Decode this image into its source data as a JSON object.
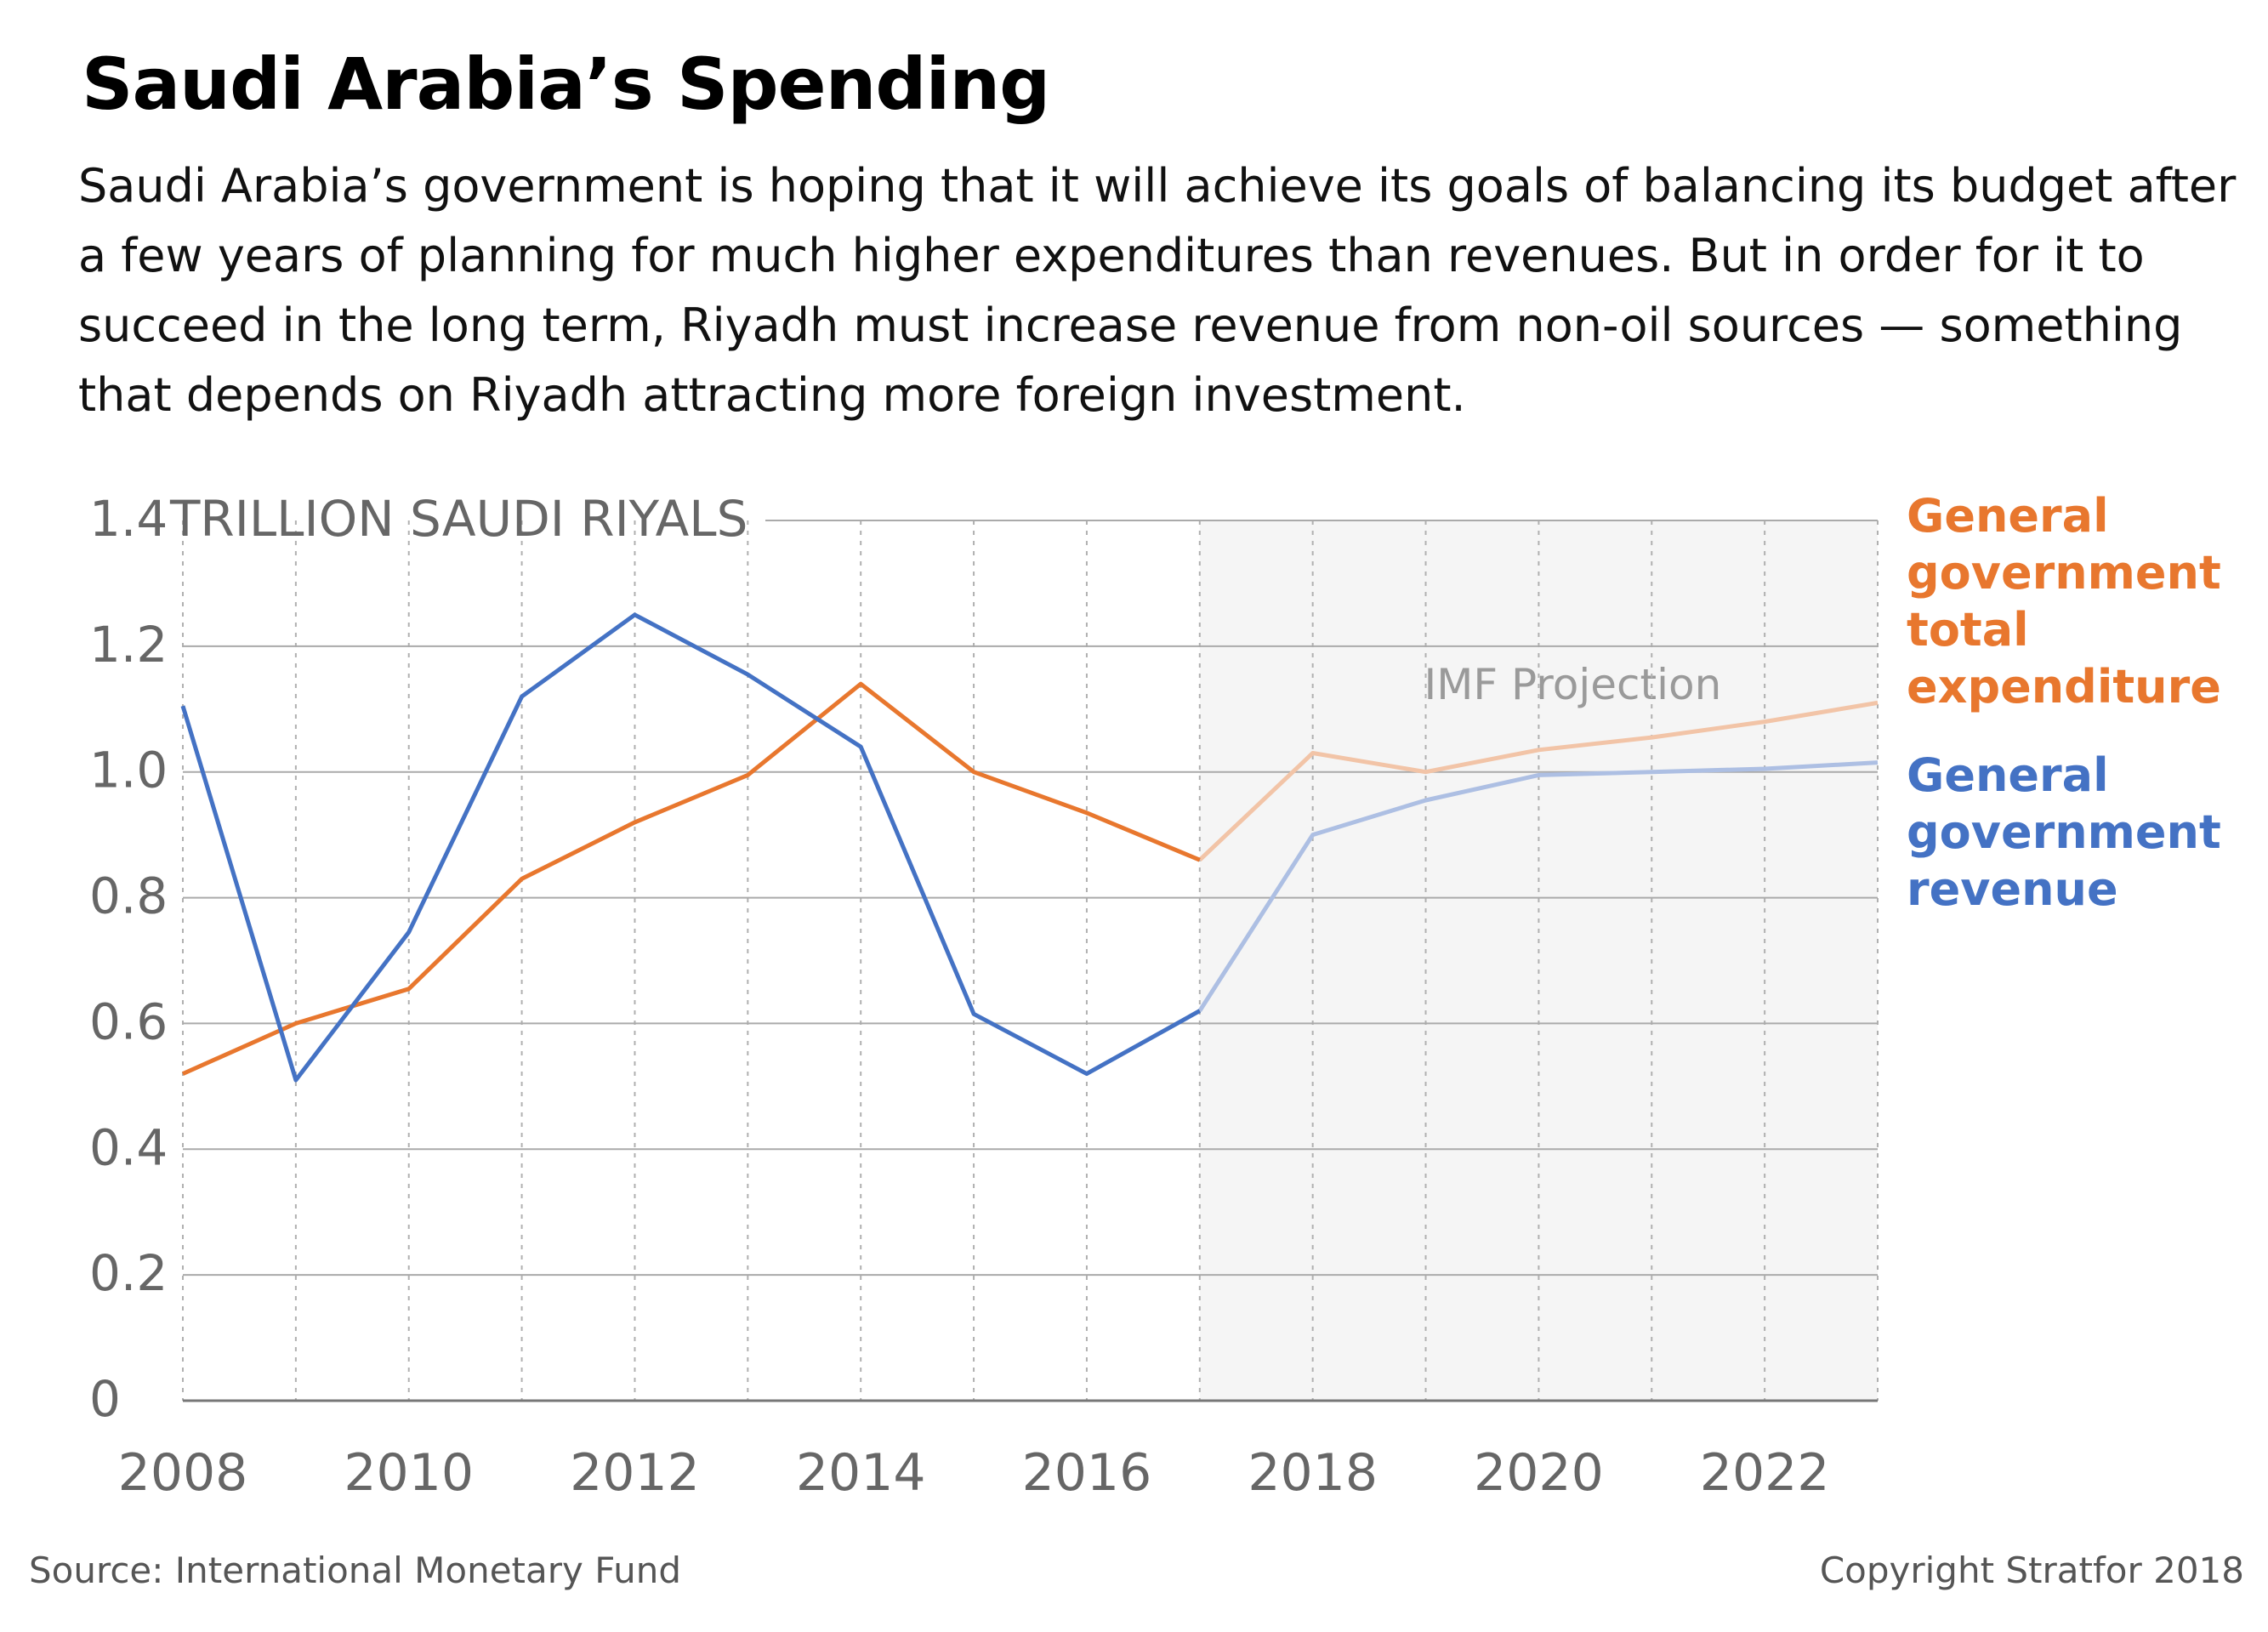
{
  "header": {
    "title": "Saudi Arabia’s Spending",
    "subtitle": "Saudi Arabia’s government is hoping that it will achieve its goals of balancing its budget after a few years of planning for much higher expenditures than revenues. But in order for it to succeed in the long term, Riyadh must increase revenue from non-oil sources — something that depends on Riyadh attracting more foreign investment."
  },
  "footer": {
    "source": "Source: International Monetary Fund",
    "copyright": "Copyright Stratfor 2018"
  },
  "chart_data": {
    "type": "line",
    "unit_label": "TRILLION SAUDI RIYALS",
    "x": [
      2008,
      2009,
      2010,
      2011,
      2012,
      2013,
      2014,
      2015,
      2016,
      2017,
      2018,
      2019,
      2020,
      2021,
      2022,
      2023
    ],
    "xlim": [
      2008,
      2023
    ],
    "x_tick_labels": [
      "2008",
      "2010",
      "2012",
      "2014",
      "2016",
      "2018",
      "2020",
      "2022"
    ],
    "ylim": [
      0,
      1.4
    ],
    "y_ticks": [
      0,
      0.2,
      0.4,
      0.6,
      0.8,
      1.0,
      1.2,
      1.4
    ],
    "y_tick_labels": [
      "0",
      "0.2",
      "0.4",
      "0.6",
      "0.8",
      "1.0",
      "1.2",
      "1.4"
    ],
    "grid": true,
    "projection": {
      "label": "IMF Projection",
      "start": 2017,
      "end": 2023
    },
    "series": [
      {
        "name": "General government total expenditure",
        "color": "#e8772e",
        "projection_color": "#f2c4a7",
        "values": [
          0.52,
          0.6,
          0.655,
          0.83,
          0.92,
          0.995,
          1.14,
          1.0,
          0.935,
          0.86,
          1.03,
          1.0,
          1.035,
          1.055,
          1.08,
          1.11
        ]
      },
      {
        "name": "General government revenue",
        "color": "#4472c4",
        "projection_color": "#adbfe3",
        "values": [
          1.105,
          0.51,
          0.745,
          1.12,
          1.25,
          1.155,
          1.04,
          0.615,
          0.52,
          0.62,
          0.9,
          0.955,
          0.995,
          1.0,
          1.005,
          1.015
        ]
      }
    ],
    "legend": "right"
  }
}
